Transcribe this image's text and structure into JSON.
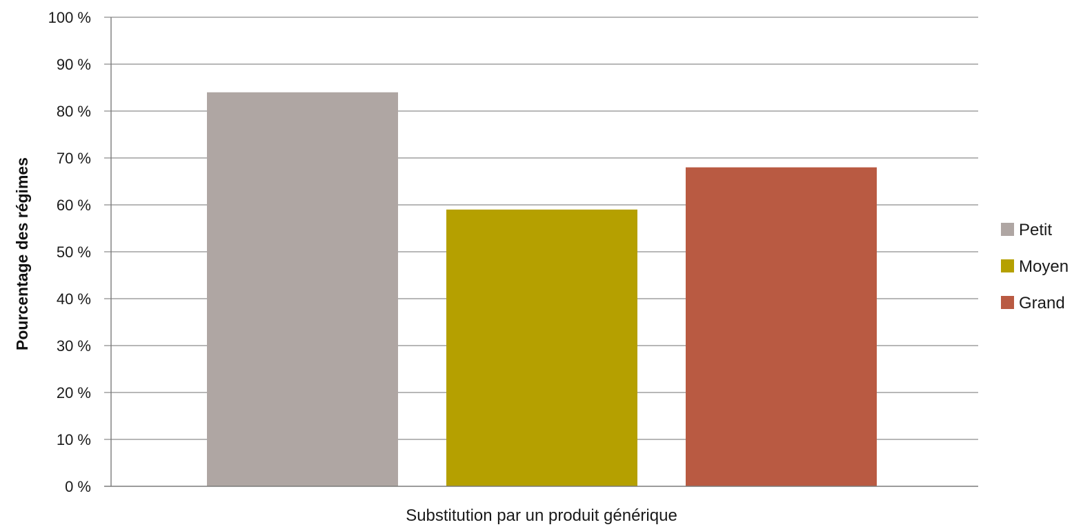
{
  "chart_data": {
    "type": "bar",
    "categories": [
      "Substitution par un produit générique"
    ],
    "series": [
      {
        "name": "Petit",
        "values": [
          84
        ],
        "color": "#afa6a3"
      },
      {
        "name": "Moyen",
        "values": [
          59
        ],
        "color": "#b5a000"
      },
      {
        "name": "Grand",
        "values": [
          68
        ],
        "color": "#b95a42"
      }
    ],
    "xlabel": "Substitution par un produit générique",
    "ylabel": "Pourcentage des régimes",
    "ylim": [
      0,
      100
    ],
    "yticks": [
      0,
      10,
      20,
      30,
      40,
      50,
      60,
      70,
      80,
      90,
      100
    ],
    "ytick_labels": [
      "0 %",
      "10 %",
      "20 %",
      "30 %",
      "40 %",
      "50 %",
      "60 %",
      "70 %",
      "80 %",
      "90 %",
      "100 %"
    ],
    "grid": true,
    "legend_position": "right"
  }
}
